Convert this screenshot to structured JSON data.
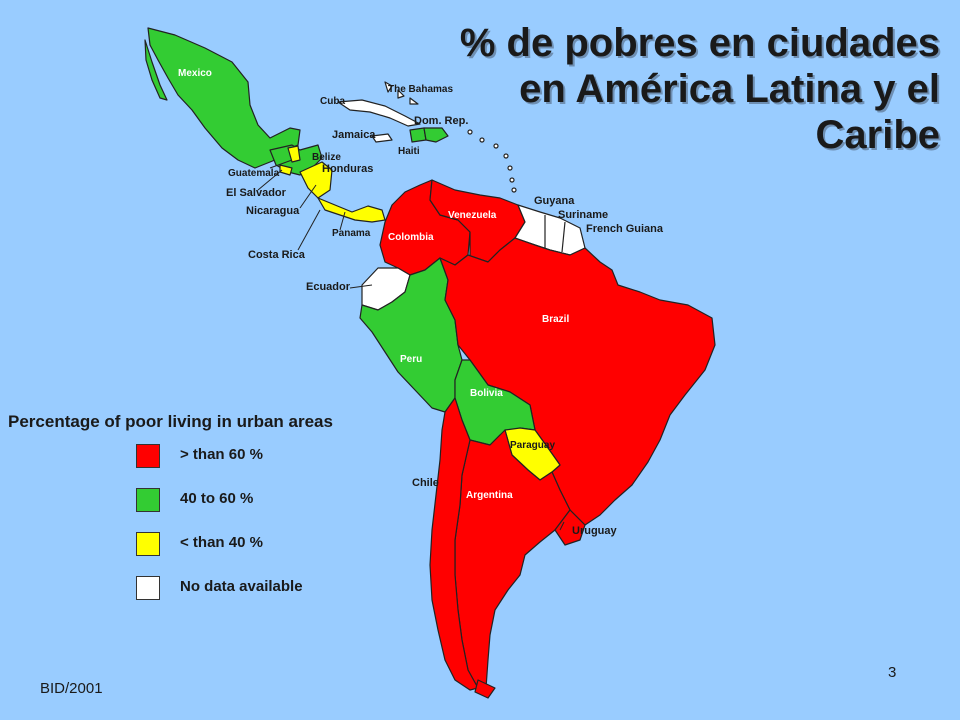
{
  "title": {
    "line1": "% de pobres en ciudades",
    "line2": "en América Latina y el",
    "line3": "Caribe"
  },
  "legend": {
    "title": "Percentage of poor living in urban areas",
    "items": [
      {
        "label": "> than 60 %",
        "color": "#FF0000"
      },
      {
        "label": "40 to 60 %",
        "color": "#33CC33"
      },
      {
        "label": "< than 40 %",
        "color": "#FFFF00"
      },
      {
        "label": "No data available",
        "color": "#FFFFFF"
      }
    ]
  },
  "map_labels": {
    "mexico": "Mexico",
    "bahamas": "The Bahamas",
    "cuba": "Cuba",
    "jamaica": "Jamaica",
    "dom_rep": "Dom. Rep.",
    "haiti": "Haiti",
    "belize": "Belize",
    "guatemala": "Guatemala",
    "honduras": "Honduras",
    "el_salvador": "El Salvador",
    "nicaragua": "Nicaragua",
    "panama": "Panama",
    "costa_rica": "Costa Rica",
    "ecuador": "Ecuador",
    "colombia": "Colombia",
    "venezuela": "Venezuela",
    "guyana": "Guyana",
    "suriname": "Suriname",
    "french_guiana": "French Guiana",
    "peru": "Peru",
    "brazil": "Brazil",
    "bolivia": "Bolivia",
    "paraguay": "Paraguay",
    "chile": "Chile",
    "argentina": "Argentina",
    "uruguay": "Uruguay"
  },
  "footer": {
    "source": "BID/2001",
    "page": "3"
  },
  "colors": {
    "background": "#99CCFF",
    "high": "#FF0000",
    "mid": "#33CC33",
    "low": "#FFFF00",
    "no_data": "#FFFFFF"
  }
}
